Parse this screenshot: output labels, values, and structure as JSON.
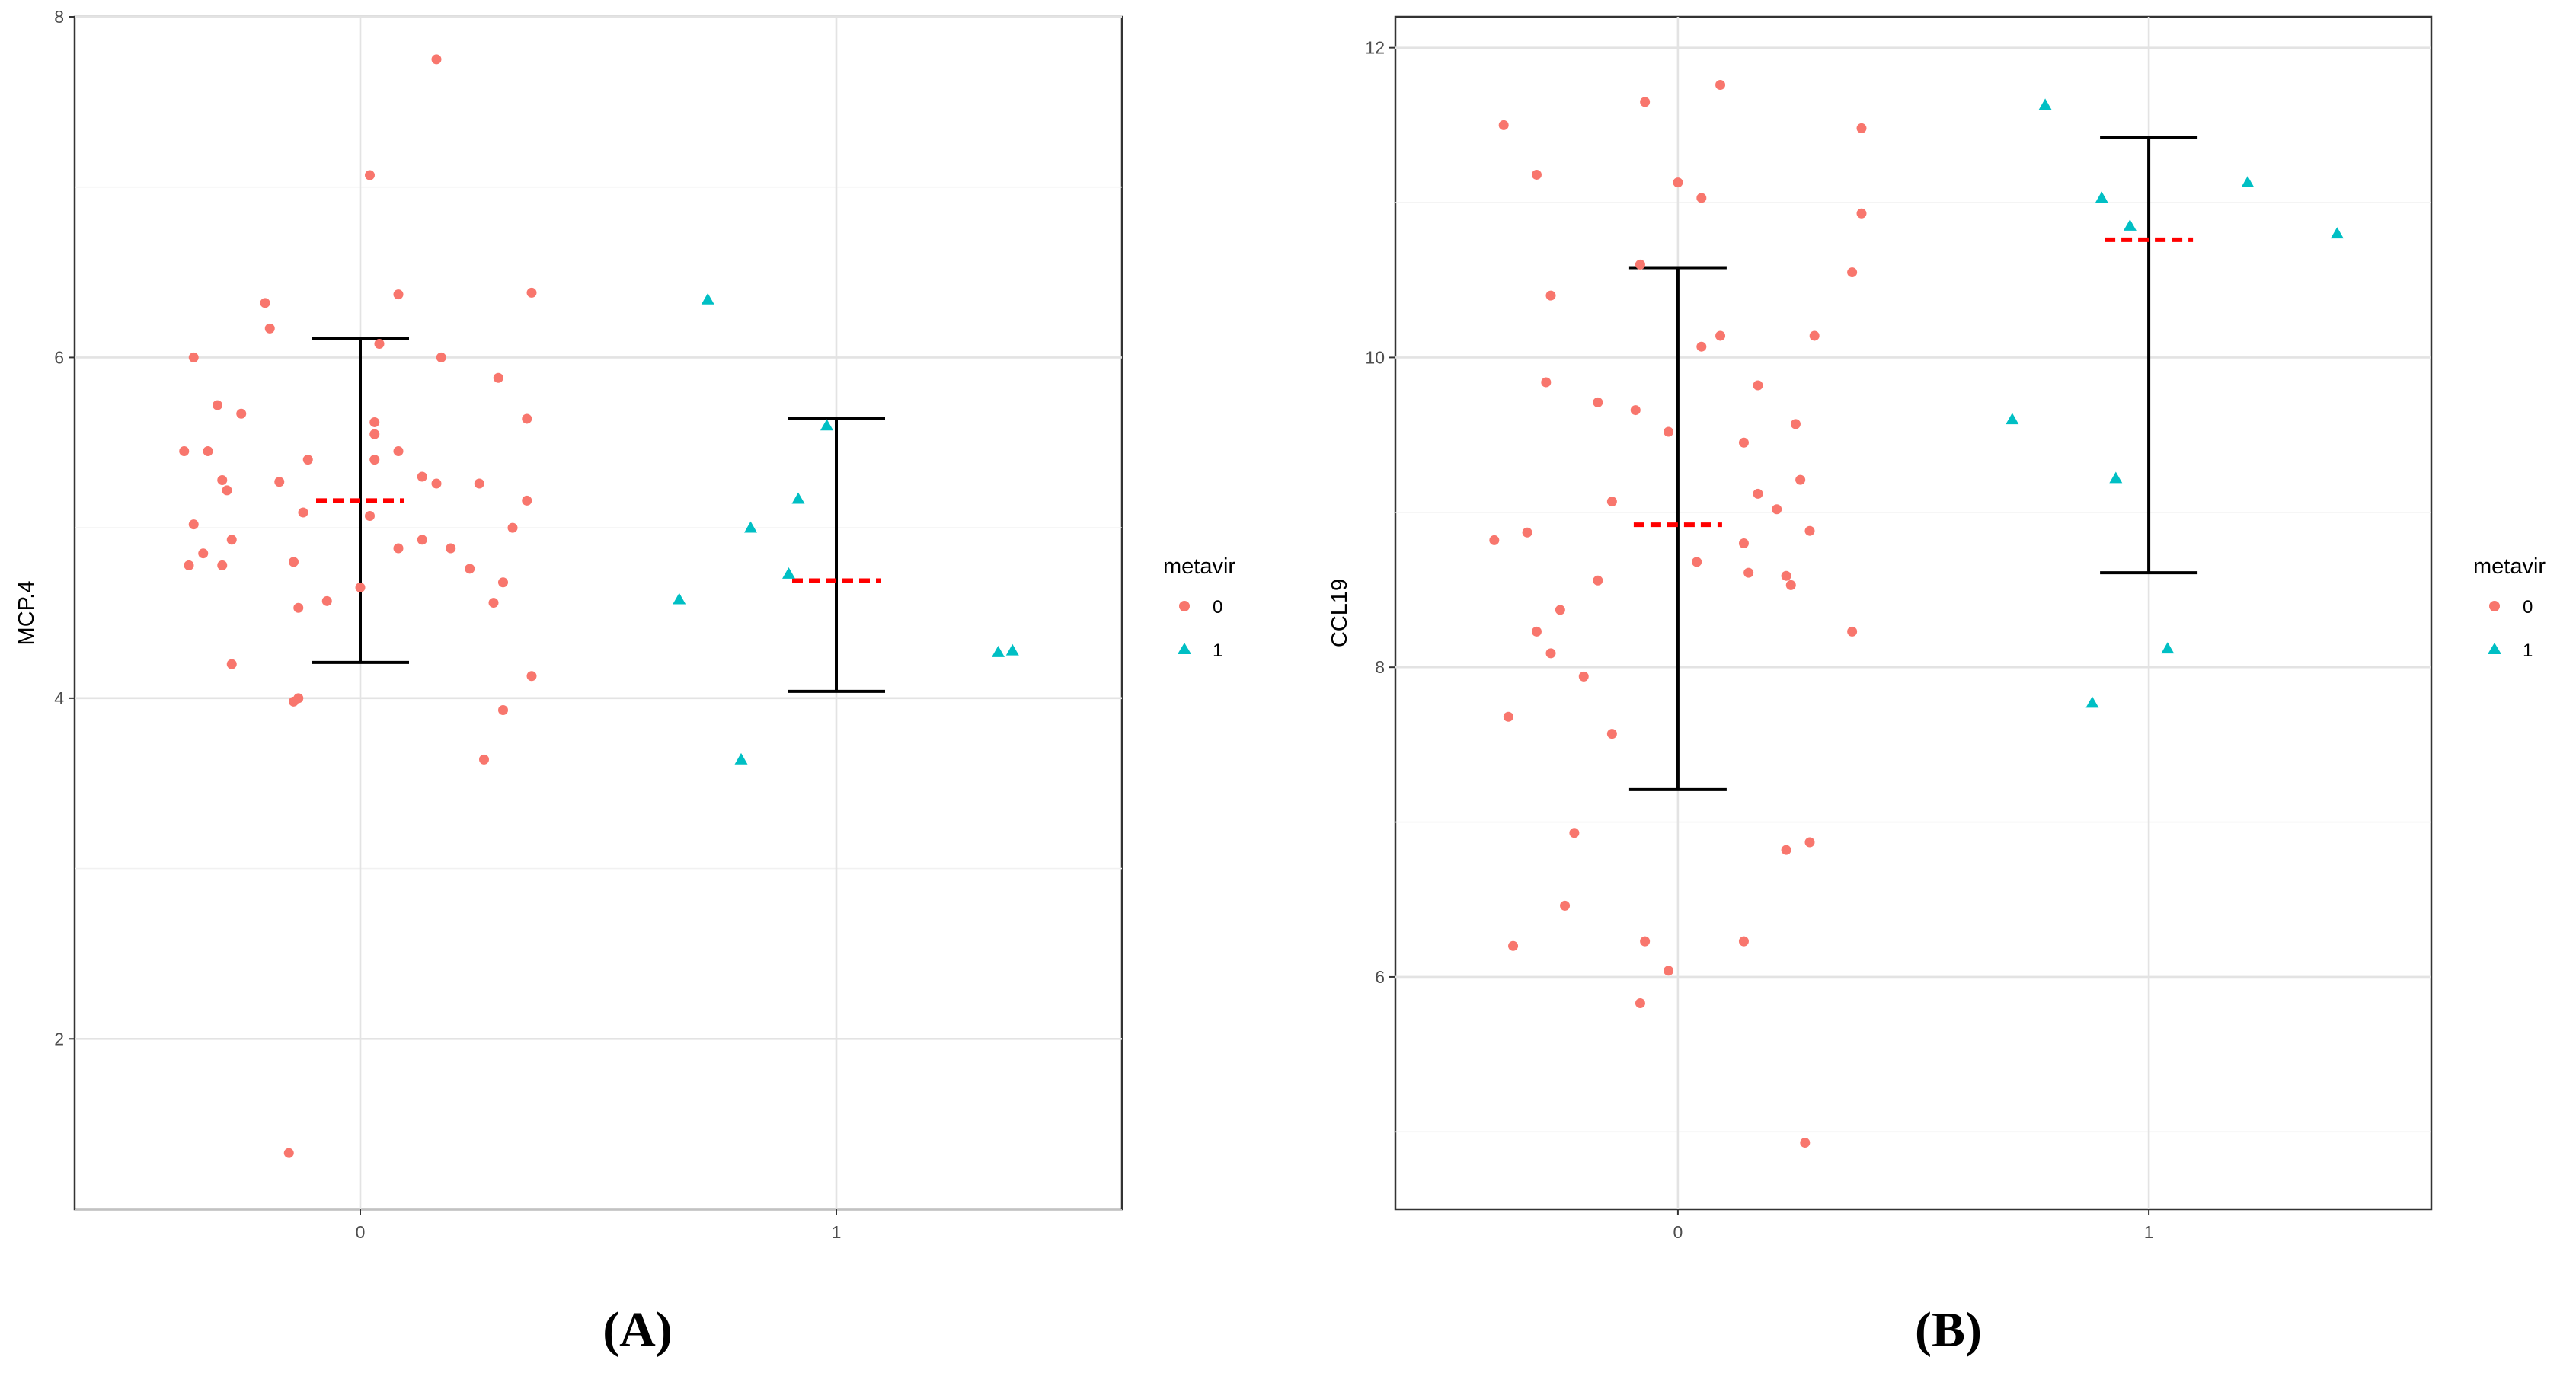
{
  "colors": {
    "group0": "#F8766D",
    "group1": "#00BFC4",
    "mean": "#FF0000",
    "errorbar": "#000000"
  },
  "chart_data": [
    {
      "type": "scatter",
      "panel": "A",
      "caption": "(A)",
      "ylabel": "MCP.4",
      "xlabel": "",
      "ylim": [
        1.0,
        8.0
      ],
      "yticks": [
        "2",
        "4",
        "6",
        "8"
      ],
      "ytick_values": [
        2,
        4,
        6,
        8
      ],
      "xlim": [
        -0.6,
        1.6
      ],
      "xticks": [
        "0",
        "1"
      ],
      "xtick_values": [
        0,
        1
      ],
      "grid": true,
      "legend": {
        "title": "metavir",
        "position": "right",
        "entries": [
          {
            "label": "0",
            "shape": "circle"
          },
          {
            "label": "1",
            "shape": "triangle"
          }
        ]
      },
      "series": [
        {
          "name": "0",
          "shape": "circle",
          "points": [
            [
              -0.37,
              5.45
            ],
            [
              -0.32,
              5.45
            ],
            [
              -0.35,
              6.0
            ],
            [
              -0.3,
              5.72
            ],
            [
              -0.29,
              5.28
            ],
            [
              -0.28,
              5.22
            ],
            [
              -0.25,
              5.67
            ],
            [
              -0.35,
              5.02
            ],
            [
              -0.36,
              4.78
            ],
            [
              -0.33,
              4.85
            ],
            [
              -0.29,
              4.78
            ],
            [
              -0.27,
              4.93
            ],
            [
              -0.27,
              4.2
            ],
            [
              -0.2,
              6.32
            ],
            [
              -0.19,
              6.17
            ],
            [
              -0.17,
              5.27
            ],
            [
              -0.14,
              4.8
            ],
            [
              -0.11,
              5.4
            ],
            [
              -0.12,
              5.09
            ],
            [
              -0.13,
              4.53
            ],
            [
              -0.07,
              4.57
            ],
            [
              -0.13,
              4.0
            ],
            [
              -0.14,
              3.98
            ],
            [
              -0.15,
              1.33
            ],
            [
              0.02,
              7.07
            ],
            [
              0.16,
              7.75
            ],
            [
              0.08,
              6.37
            ],
            [
              0.04,
              6.08
            ],
            [
              0.17,
              6.0
            ],
            [
              0.03,
              5.62
            ],
            [
              0.03,
              5.55
            ],
            [
              0.08,
              5.45
            ],
            [
              0.03,
              5.4
            ],
            [
              0.13,
              5.3
            ],
            [
              0.16,
              5.26
            ],
            [
              0.25,
              5.26
            ],
            [
              0.02,
              5.07
            ],
            [
              0.13,
              4.93
            ],
            [
              0.08,
              4.88
            ],
            [
              0.19,
              4.88
            ],
            [
              0.0,
              4.65
            ],
            [
              0.23,
              4.76
            ],
            [
              0.29,
              5.88
            ],
            [
              0.36,
              6.38
            ],
            [
              0.35,
              5.64
            ],
            [
              0.35,
              5.16
            ],
            [
              0.32,
              5.0
            ],
            [
              0.3,
              4.68
            ],
            [
              0.28,
              4.56
            ],
            [
              0.36,
              4.13
            ],
            [
              0.3,
              3.93
            ],
            [
              0.26,
              3.64
            ]
          ]
        },
        {
          "name": "1",
          "shape": "triangle",
          "points": [
            [
              0.73,
              6.34
            ],
            [
              0.98,
              5.6
            ],
            [
              0.92,
              5.17
            ],
            [
              0.82,
              5.0
            ],
            [
              0.9,
              4.73
            ],
            [
              0.67,
              4.58
            ],
            [
              0.8,
              3.64
            ],
            [
              1.34,
              4.27
            ],
            [
              1.37,
              4.28
            ]
          ]
        }
      ],
      "summary": [
        {
          "group": "0",
          "x": 0,
          "mean": 5.16,
          "lower": 4.21,
          "upper": 6.11
        },
        {
          "group": "1",
          "x": 1,
          "mean": 4.69,
          "lower": 4.04,
          "upper": 5.64
        }
      ]
    },
    {
      "type": "scatter",
      "panel": "B",
      "caption": "(B)",
      "ylabel": "CCL19",
      "xlabel": "",
      "ylim": [
        4.5,
        12.2
      ],
      "yticks": [
        "6",
        "8",
        "10",
        "12"
      ],
      "ytick_values": [
        6,
        8,
        10,
        12
      ],
      "xlim": [
        -0.6,
        1.6
      ],
      "xticks": [
        "0",
        "1"
      ],
      "xtick_values": [
        0,
        1
      ],
      "grid": true,
      "legend": {
        "title": "metavir",
        "position": "right",
        "entries": [
          {
            "label": "0",
            "shape": "circle"
          },
          {
            "label": "1",
            "shape": "triangle"
          }
        ]
      },
      "series": [
        {
          "name": "0",
          "shape": "circle",
          "points": [
            [
              -0.37,
              11.5
            ],
            [
              -0.3,
              11.18
            ],
            [
              -0.07,
              11.65
            ],
            [
              0.09,
              11.76
            ],
            [
              0.39,
              11.48
            ],
            [
              0.0,
              11.13
            ],
            [
              0.05,
              11.03
            ],
            [
              0.39,
              10.93
            ],
            [
              -0.27,
              10.4
            ],
            [
              -0.08,
              10.6
            ],
            [
              0.37,
              10.55
            ],
            [
              0.09,
              10.14
            ],
            [
              0.05,
              10.07
            ],
            [
              0.29,
              10.14
            ],
            [
              -0.28,
              9.84
            ],
            [
              -0.17,
              9.71
            ],
            [
              -0.09,
              9.66
            ],
            [
              0.17,
              9.82
            ],
            [
              -0.02,
              9.52
            ],
            [
              0.25,
              9.57
            ],
            [
              0.14,
              9.45
            ],
            [
              -0.14,
              9.07
            ],
            [
              0.17,
              9.12
            ],
            [
              0.26,
              9.21
            ],
            [
              0.21,
              9.02
            ],
            [
              -0.32,
              8.87
            ],
            [
              -0.39,
              8.82
            ],
            [
              0.14,
              8.8
            ],
            [
              0.28,
              8.88
            ],
            [
              -0.25,
              8.37
            ],
            [
              0.04,
              8.68
            ],
            [
              0.15,
              8.61
            ],
            [
              0.23,
              8.59
            ],
            [
              0.24,
              8.53
            ],
            [
              -0.17,
              8.56
            ],
            [
              -0.3,
              8.23
            ],
            [
              -0.27,
              8.09
            ],
            [
              -0.2,
              7.94
            ],
            [
              0.37,
              8.23
            ],
            [
              -0.36,
              7.68
            ],
            [
              -0.14,
              7.57
            ],
            [
              -0.22,
              6.93
            ],
            [
              -0.24,
              6.46
            ],
            [
              -0.07,
              6.23
            ],
            [
              -0.35,
              6.2
            ],
            [
              0.14,
              6.23
            ],
            [
              0.23,
              6.82
            ],
            [
              0.28,
              6.87
            ],
            [
              -0.02,
              6.04
            ],
            [
              -0.08,
              5.83
            ],
            [
              0.27,
              4.93
            ]
          ]
        },
        {
          "name": "1",
          "shape": "triangle",
          "points": [
            [
              0.78,
              11.63
            ],
            [
              0.9,
              11.03
            ],
            [
              0.96,
              10.85
            ],
            [
              1.21,
              11.13
            ],
            [
              1.4,
              10.8
            ],
            [
              0.71,
              9.6
            ],
            [
              0.93,
              9.22
            ],
            [
              1.04,
              8.12
            ],
            [
              0.88,
              7.77
            ]
          ]
        }
      ],
      "summary": [
        {
          "group": "0",
          "x": 0,
          "mean": 8.92,
          "lower": 7.21,
          "upper": 10.58
        },
        {
          "group": "1",
          "x": 1,
          "mean": 10.76,
          "lower": 8.61,
          "upper": 11.42
        }
      ]
    }
  ]
}
